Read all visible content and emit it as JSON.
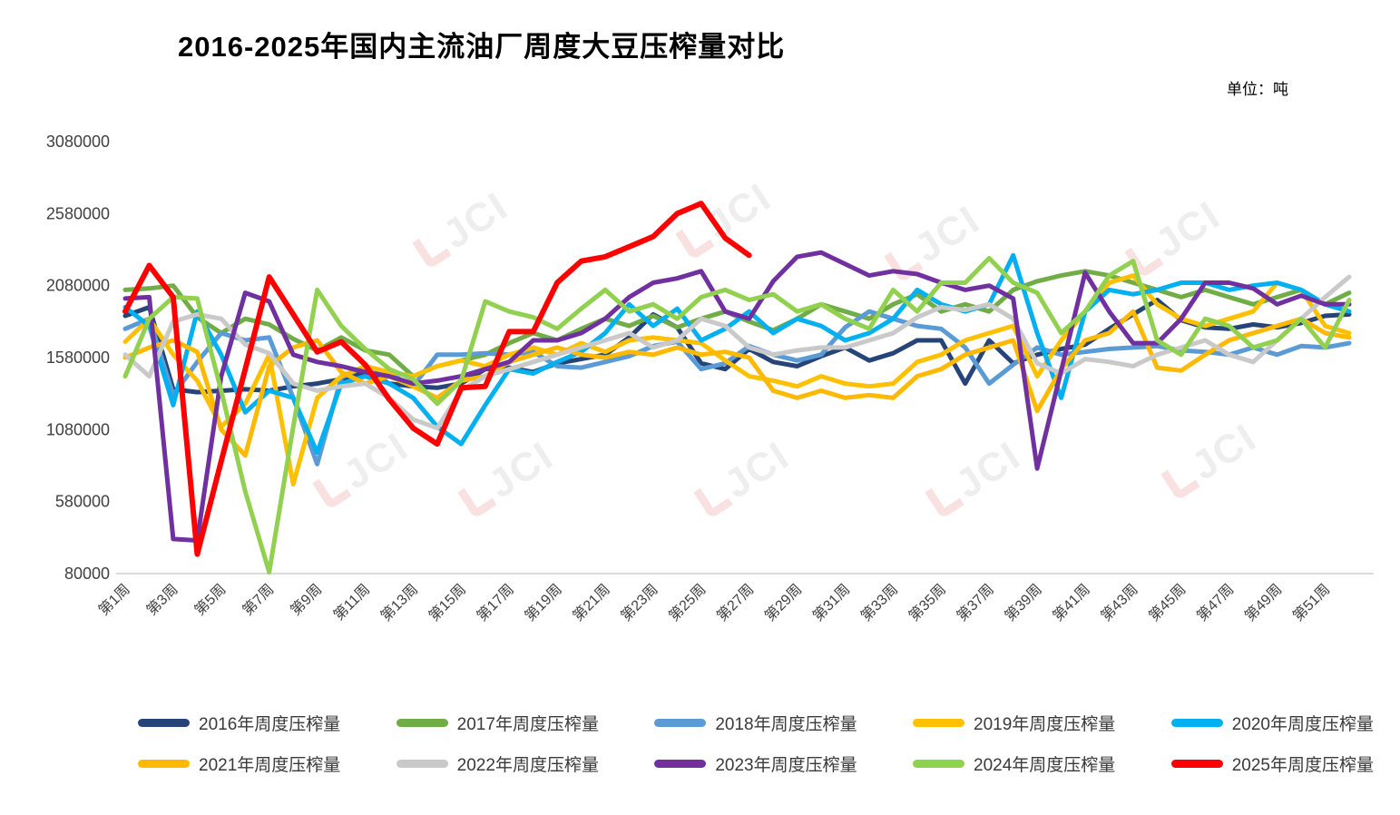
{
  "header": {
    "title": "2016-2025年国内主流油厂周度大豆压榨量对比",
    "unit_label": "单位：吨"
  },
  "watermark": {
    "text": "JCI"
  },
  "chart_data": {
    "type": "line",
    "title": "2016-2025年国内主流油厂周度大豆压榨量对比",
    "unit": "吨",
    "xlabel": "",
    "ylabel": "",
    "weeks": 52,
    "x_tick_labels": [
      "第1周",
      "第3周",
      "第5周",
      "第7周",
      "第9周",
      "第11周",
      "第13周",
      "第15周",
      "第17周",
      "第19周",
      "第21周",
      "第23周",
      "第25周",
      "第27周",
      "第29周",
      "第31周",
      "第33周",
      "第35周",
      "第37周",
      "第39周",
      "第41周",
      "第43周",
      "第45周",
      "第47周",
      "第49周",
      "第51周"
    ],
    "ylim": [
      80000,
      3080000
    ],
    "y_ticks": [
      80000,
      580000,
      1080000,
      1580000,
      2080000,
      2580000,
      3080000
    ],
    "grid": false,
    "legend_position": "bottom",
    "series": [
      {
        "name": "2016年周度压榨量",
        "color": "#264478",
        "values": [
          1870000,
          1930000,
          1360000,
          1340000,
          1350000,
          1360000,
          1350000,
          1380000,
          1400000,
          1430000,
          1480000,
          1400000,
          1380000,
          1370000,
          1400000,
          1500000,
          1510000,
          1480000,
          1540000,
          1570000,
          1600000,
          1720000,
          1880000,
          1790000,
          1540000,
          1500000,
          1640000,
          1550000,
          1520000,
          1590000,
          1650000,
          1560000,
          1610000,
          1700000,
          1700000,
          1400000,
          1700000,
          1540000,
          1600000,
          1640000,
          1670000,
          1780000,
          1880000,
          1980000,
          1840000,
          1790000,
          1780000,
          1810000,
          1790000,
          1820000,
          1870000,
          1880000
        ]
      },
      {
        "name": "2017年周度压榨量",
        "color": "#70AD47",
        "values": [
          2050000,
          2060000,
          2080000,
          1860000,
          1750000,
          1850000,
          1810000,
          1710000,
          1630000,
          1720000,
          1630000,
          1600000,
          1450000,
          1520000,
          1560000,
          1600000,
          1680000,
          1750000,
          1700000,
          1780000,
          1850000,
          1800000,
          1870000,
          1790000,
          1850000,
          1900000,
          1830000,
          1770000,
          1850000,
          1950000,
          1900000,
          1850000,
          1950000,
          2020000,
          1900000,
          1950000,
          1900000,
          2050000,
          2110000,
          2150000,
          2180000,
          2150000,
          2100000,
          2050000,
          2000000,
          2050000,
          2000000,
          1950000,
          2000000,
          2050000,
          1950000,
          2030000
        ]
      },
      {
        "name": "2018年周度压榨量",
        "color": "#5B9BD5",
        "values": [
          1780000,
          1850000,
          1320000,
          1550000,
          1750000,
          1700000,
          1720000,
          1300000,
          840000,
          1440000,
          1520000,
          1470000,
          1380000,
          1600000,
          1600000,
          1610000,
          1600000,
          1620000,
          1520000,
          1510000,
          1550000,
          1590000,
          1660000,
          1690000,
          1500000,
          1540000,
          1660000,
          1600000,
          1560000,
          1600000,
          1790000,
          1900000,
          1850000,
          1800000,
          1780000,
          1650000,
          1400000,
          1530000,
          1650000,
          1600000,
          1620000,
          1640000,
          1650000,
          1660000,
          1630000,
          1620000,
          1600000,
          1650000,
          1600000,
          1660000,
          1650000,
          1680000
        ]
      },
      {
        "name": "2019年周度压榨量",
        "color": "#FFC000",
        "values": [
          1690000,
          1850000,
          1600000,
          1420000,
          1100000,
          1260000,
          1600000,
          700000,
          1300000,
          1450000,
          1520000,
          1480000,
          1450000,
          1520000,
          1560000,
          1520000,
          1600000,
          1650000,
          1600000,
          1680000,
          1620000,
          1700000,
          1720000,
          1700000,
          1680000,
          1560000,
          1450000,
          1420000,
          1380000,
          1450000,
          1400000,
          1380000,
          1400000,
          1550000,
          1600000,
          1700000,
          1750000,
          1800000,
          1450000,
          1700000,
          1900000,
          2100000,
          2150000,
          1950000,
          1850000,
          1800000,
          1850000,
          1900000,
          2100000,
          2050000,
          1800000,
          1750000
        ]
      },
      {
        "name": "2020年周度压榨量",
        "color": "#00B0F0",
        "values": [
          1930000,
          1800000,
          1250000,
          1900000,
          1600000,
          1200000,
          1350000,
          1300000,
          920000,
          1400000,
          1450000,
          1400000,
          1300000,
          1100000,
          980000,
          1250000,
          1500000,
          1470000,
          1550000,
          1620000,
          1750000,
          1950000,
          1800000,
          1920000,
          1700000,
          1780000,
          1900000,
          1750000,
          1850000,
          1800000,
          1700000,
          1750000,
          1850000,
          2050000,
          1950000,
          1900000,
          1950000,
          2290000,
          1750000,
          1300000,
          1900000,
          2050000,
          2020000,
          2050000,
          2100000,
          2100000,
          2050000,
          2080000,
          2100000,
          2050000,
          1950000,
          1900000
        ]
      },
      {
        "name": "2021年周度压榨量",
        "color": "#FFB900",
        "values": [
          1580000,
          1650000,
          1700000,
          1620000,
          1080000,
          900000,
          1520000,
          1650000,
          1700000,
          1480000,
          1400000,
          1450000,
          1380000,
          1300000,
          1420000,
          1450000,
          1550000,
          1600000,
          1650000,
          1600000,
          1580000,
          1620000,
          1600000,
          1650000,
          1600000,
          1620000,
          1580000,
          1350000,
          1300000,
          1350000,
          1300000,
          1320000,
          1300000,
          1450000,
          1500000,
          1600000,
          1650000,
          1700000,
          1210000,
          1500000,
          1700000,
          1750000,
          1900000,
          1510000,
          1490000,
          1600000,
          1700000,
          1750000,
          1800000,
          1850000,
          1750000,
          1720000
        ]
      },
      {
        "name": "2022年周度压榨量",
        "color": "#C9C9C9",
        "values": [
          1600000,
          1450000,
          1830000,
          1880000,
          1850000,
          1670000,
          1610000,
          1400000,
          1350000,
          1380000,
          1400000,
          1300000,
          1150000,
          1090000,
          1350000,
          1450000,
          1500000,
          1550000,
          1600000,
          1650000,
          1700000,
          1750000,
          1650000,
          1700000,
          1850000,
          1800000,
          1650000,
          1600000,
          1630000,
          1650000,
          1650000,
          1700000,
          1750000,
          1860000,
          1930000,
          1910000,
          1950000,
          1850000,
          1540000,
          1470000,
          1570000,
          1550000,
          1520000,
          1600000,
          1650000,
          1700000,
          1600000,
          1550000,
          1700000,
          1850000,
          2000000,
          2140000
        ]
      },
      {
        "name": "2023年周度压榨量",
        "color": "#7030A0",
        "values": [
          1990000,
          2000000,
          320000,
          310000,
          1450000,
          2030000,
          1970000,
          1600000,
          1550000,
          1520000,
          1480000,
          1450000,
          1400000,
          1420000,
          1450000,
          1500000,
          1550000,
          1700000,
          1700000,
          1750000,
          1850000,
          2000000,
          2100000,
          2130000,
          2180000,
          1900000,
          1850000,
          2110000,
          2280000,
          2310000,
          2230000,
          2150000,
          2180000,
          2160000,
          2100000,
          2050000,
          2080000,
          1990000,
          810000,
          1490000,
          2170000,
          1900000,
          1680000,
          1680000,
          1850000,
          2100000,
          2100000,
          2060000,
          1950000,
          2010000,
          1950000,
          1950000
        ]
      },
      {
        "name": "2024年周度压榨量",
        "color": "#92D050",
        "values": [
          1450000,
          1850000,
          2000000,
          1990000,
          1350000,
          650000,
          90000,
          1100000,
          2050000,
          1800000,
          1640000,
          1500000,
          1430000,
          1260000,
          1420000,
          1970000,
          1900000,
          1860000,
          1780000,
          1920000,
          2050000,
          1900000,
          1950000,
          1850000,
          2000000,
          2050000,
          1980000,
          2020000,
          1900000,
          1950000,
          1850000,
          1780000,
          2050000,
          1900000,
          2100000,
          2100000,
          2270000,
          2100000,
          2030000,
          1750000,
          1900000,
          2150000,
          2250000,
          1700000,
          1600000,
          1850000,
          1800000,
          1650000,
          1700000,
          1850000,
          1650000,
          1980000
        ]
      },
      {
        "name": "2025年周度压榨量",
        "color": "#FF0000",
        "values": [
          1900000,
          2220000,
          2000000,
          215000,
          860000,
          1500000,
          2140000,
          1880000,
          1620000,
          1690000,
          1530000,
          1290000,
          1090000,
          980000,
          1370000,
          1380000,
          1760000,
          1760000,
          2100000,
          2250000,
          2280000,
          2350000,
          2420000,
          2580000,
          2650000,
          2410000,
          2290000
        ]
      }
    ]
  }
}
